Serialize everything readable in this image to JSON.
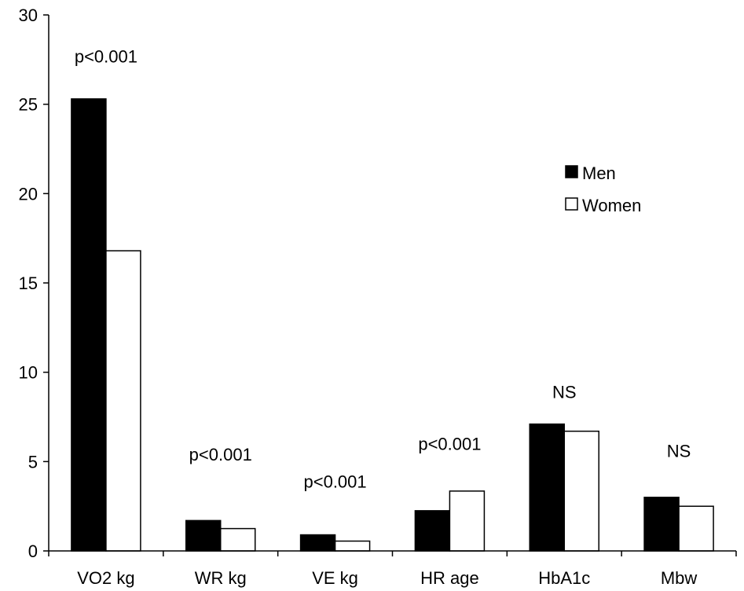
{
  "chart_data": {
    "type": "bar",
    "categories": [
      "VO2 kg",
      "WR kg",
      "VE kg",
      "HR age",
      "HbA1c",
      "Mbw"
    ],
    "series": [
      {
        "name": "Men",
        "values": [
          25.3,
          1.7,
          0.9,
          2.25,
          7.1,
          3.0
        ],
        "fill": "#000000"
      },
      {
        "name": "Women",
        "values": [
          16.8,
          1.25,
          0.55,
          3.35,
          6.7,
          2.5
        ],
        "fill": "#ffffff"
      }
    ],
    "annotations": [
      {
        "category": "VO2 kg",
        "text": "p<0.001",
        "y": 27.7
      },
      {
        "category": "WR kg",
        "text": "p<0.001",
        "y": 5.4
      },
      {
        "category": "VE kg",
        "text": "p<0.001",
        "y": 3.9
      },
      {
        "category": "HR age",
        "text": "p<0.001",
        "y": 6.0
      },
      {
        "category": "HbA1c",
        "text": "NS",
        "y": 8.9
      },
      {
        "category": "Mbw",
        "text": "NS",
        "y": 5.6
      }
    ],
    "ylim": [
      0,
      30
    ],
    "yticks": [
      0,
      5,
      10,
      15,
      20,
      25,
      30
    ],
    "title": "",
    "xlabel": "",
    "ylabel": "",
    "grid": false,
    "legend": "upper-right"
  }
}
